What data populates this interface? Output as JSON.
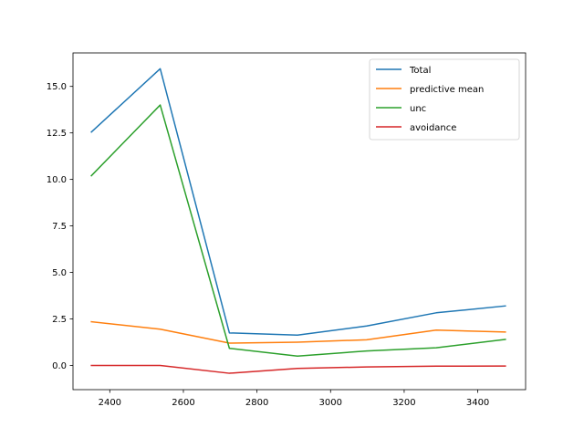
{
  "chart_data": {
    "type": "line",
    "title": "",
    "xlabel": "",
    "ylabel": "",
    "xlim": [
      2300,
      3530
    ],
    "ylim": [
      -1.3,
      16.8
    ],
    "x": [
      2350,
      2537,
      2725,
      2910,
      3098,
      3287,
      3475
    ],
    "xticks": [
      2400,
      2600,
      2800,
      3000,
      3200,
      3400
    ],
    "xtick_labels": [
      "2400",
      "2600",
      "2800",
      "3000",
      "3200",
      "3400"
    ],
    "yticks": [
      0.0,
      2.5,
      5.0,
      7.5,
      10.0,
      12.5,
      15.0
    ],
    "ytick_labels": [
      "0.0",
      "2.5",
      "5.0",
      "7.5",
      "10.0",
      "12.5",
      "15.0"
    ],
    "grid": false,
    "legend_position": "top-right",
    "series": [
      {
        "name": "Total",
        "color": "#1f77b4",
        "values": [
          12.55,
          15.95,
          1.75,
          1.63,
          2.12,
          2.83,
          3.2
        ]
      },
      {
        "name": "predictive mean",
        "color": "#ff7f0e",
        "values": [
          2.35,
          1.95,
          1.2,
          1.25,
          1.38,
          1.9,
          1.8
        ]
      },
      {
        "name": "unc",
        "color": "#2ca02c",
        "values": [
          10.2,
          14.0,
          0.92,
          0.5,
          0.78,
          0.95,
          1.4
        ]
      },
      {
        "name": "avoidance",
        "color": "#d62728",
        "values": [
          0.0,
          0.0,
          -0.42,
          -0.16,
          -0.08,
          -0.04,
          -0.03
        ]
      }
    ]
  }
}
